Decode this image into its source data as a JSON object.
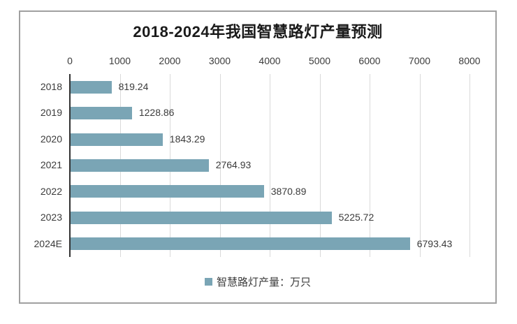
{
  "frame": {
    "background": "#ffffff",
    "border_color": "#a0a0a0"
  },
  "chart_data": {
    "type": "bar",
    "orientation": "horizontal",
    "title": "2018-2024年我国智慧路灯产量预测",
    "categories": [
      "2018",
      "2019",
      "2020",
      "2021",
      "2022",
      "2023",
      "2024E"
    ],
    "values": [
      819.24,
      1228.86,
      1843.29,
      2764.93,
      3870.89,
      5225.72,
      6793.43
    ],
    "value_labels": [
      "819.24",
      "1228.86",
      "1843.29",
      "2764.93",
      "3870.89",
      "5225.72",
      "6793.43"
    ],
    "x_ticks": [
      0,
      1000,
      2000,
      3000,
      4000,
      5000,
      6000,
      7000,
      8000
    ],
    "xlim": [
      0,
      8000
    ],
    "grid": true,
    "tick_label_position": "top",
    "legend_position": "bottom",
    "legend": {
      "label": "智慧路灯产量：万只",
      "swatch_color": "#7aa5b5"
    },
    "colors": {
      "bar": "#7aa5b5",
      "gridline": "#d9d9d9",
      "axis_line": "#333333",
      "tick_text": "#3b3b3b",
      "category_text": "#3b3b3b",
      "value_text": "#3b3b3b",
      "title_text": "#1a1a1a"
    }
  }
}
